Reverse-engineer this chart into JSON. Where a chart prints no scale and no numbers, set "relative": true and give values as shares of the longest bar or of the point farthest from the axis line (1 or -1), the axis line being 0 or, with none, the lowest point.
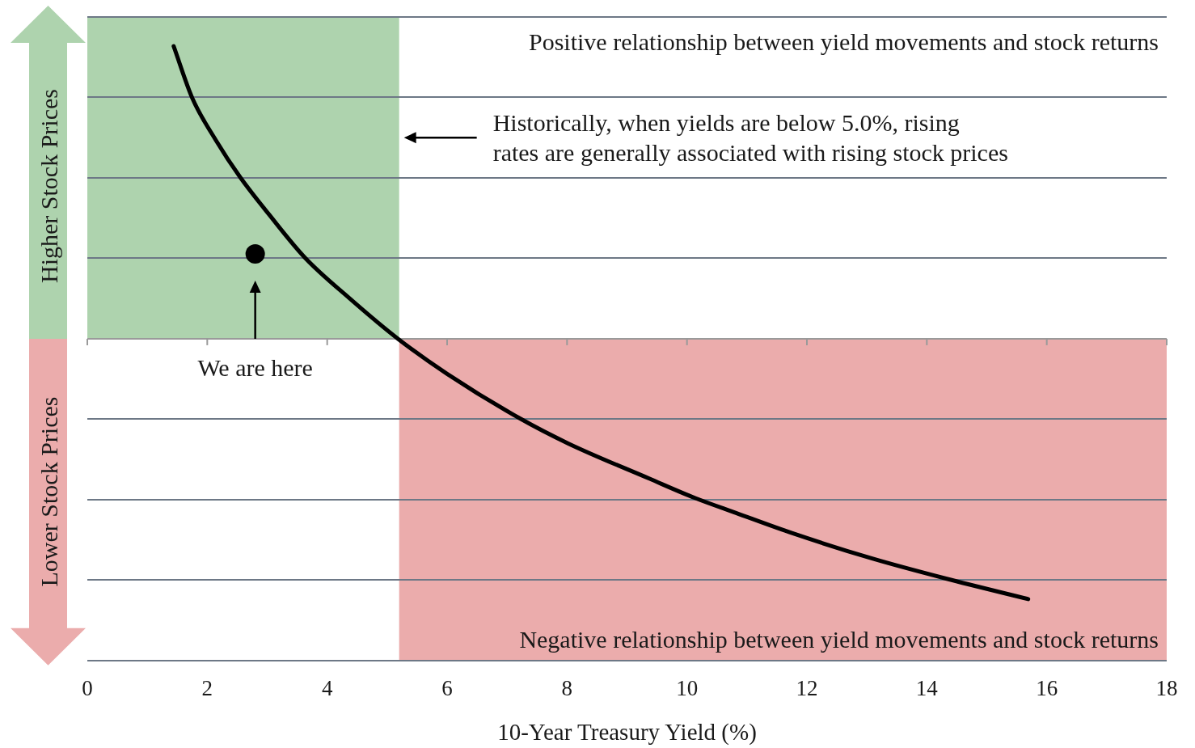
{
  "chart_data": {
    "type": "line",
    "xlabel": "10-Year Treasury Yield (%)",
    "annotations": [
      "Positive relationship between yield movements and stock returns",
      "Historically, when yields are below 5.0%, rising\nrates are generally associated with rising stock prices",
      "We are here",
      "Negative relationship between yield movements and stock returns",
      "Higher Stock Prices",
      "Lower Stock Prices"
    ],
    "series": [
      {
        "color": "#000000",
        "x": [
          1.44,
          1.75,
          2.14,
          2.55,
          3.03,
          3.63,
          4.38,
          5.18,
          6.0,
          7.21,
          8.02,
          9.37,
          10.14,
          10.81,
          11.76,
          13.1,
          14.32,
          15.69
        ],
        "values": [
          1,
          0.823,
          0.68,
          0.552,
          0.425,
          0.277,
          0.137,
          0,
          -0.12,
          -0.272,
          -0.358,
          -0.478,
          -0.545,
          -0.595,
          -0.665,
          -0.752,
          -0.82,
          -0.89
        ]
      },
      {
        "type": "scatter",
        "color": "#000000",
        "marker": "circle",
        "x": [
          2.8
        ],
        "values": [
          0.29
        ]
      }
    ],
    "relative": true,
    "xlim": [
      0,
      18
    ],
    "xticks": [
      0,
      2,
      4,
      6,
      8,
      10,
      12,
      14,
      16,
      18
    ],
    "bands": [
      {
        "axis": "x",
        "from": 0,
        "to": 5.2,
        "color": "#aed3ae"
      },
      {
        "axis": "x",
        "from": 5.2,
        "to": 18,
        "color": "#ebacac"
      }
    ],
    "grid": "y"
  }
}
